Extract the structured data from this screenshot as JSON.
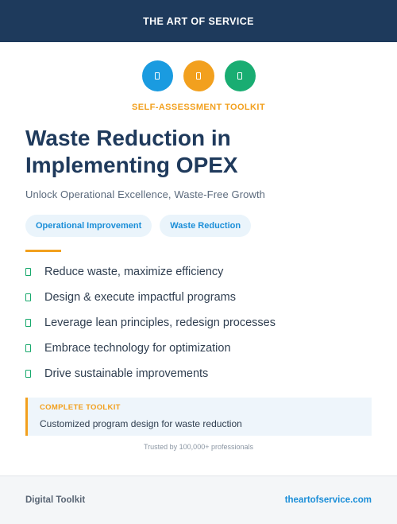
{
  "header": {
    "brand": "THE ART OF SERVICE"
  },
  "icons": [
    {
      "name": "blue-badge-icon",
      "color": "#1a9be0"
    },
    {
      "name": "orange-badge-icon",
      "color": "#f2a01e"
    },
    {
      "name": "green-badge-icon",
      "color": "#19ad72"
    }
  ],
  "kicker": {
    "text": "SELF-ASSESSMENT TOOLKIT",
    "color": "#f2a01e"
  },
  "title": "Waste Reduction in Implementing OPEX",
  "subtitle": "Unlock Operational Excellence, Waste-Free Growth",
  "tags": [
    "Operational Improvement",
    "Waste Reduction"
  ],
  "rule_color": "#f2a01e",
  "bullets": [
    "Reduce waste, maximize efficiency",
    "Design & execute impactful programs",
    "Leverage lean principles, redesign processes",
    "Embrace technology for optimization",
    "Drive sustainable improvements"
  ],
  "callout": {
    "label": "COMPLETE TOOLKIT",
    "text": "Customized program design for waste reduction",
    "label_color": "#f2a01e"
  },
  "trusted": "Trusted by 100,000+ professionals",
  "footer": {
    "left": "Digital Toolkit",
    "right": "theartofservice.com"
  }
}
